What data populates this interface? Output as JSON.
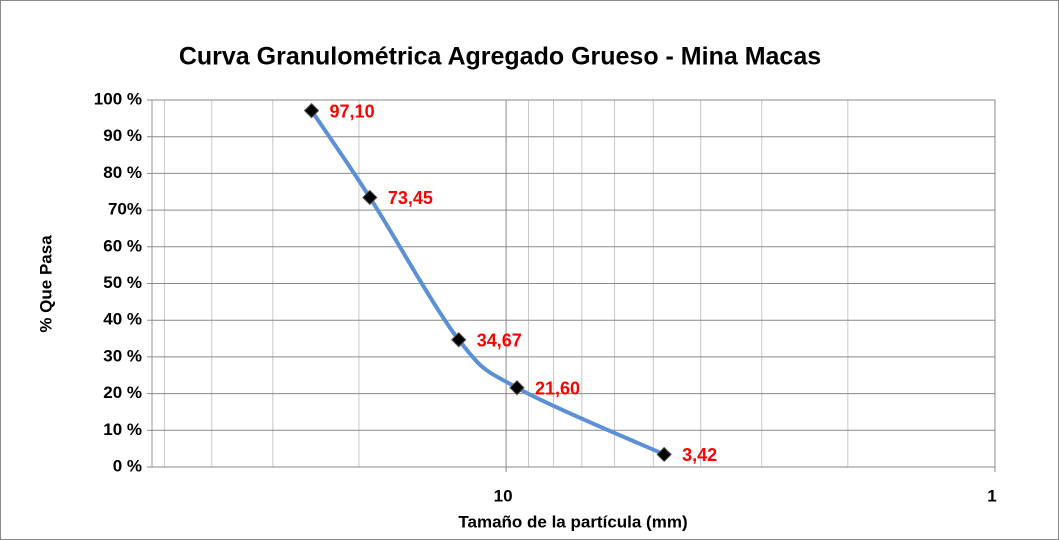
{
  "chart_data": {
    "type": "line",
    "title": "Curva Granulométrica Agregado Grueso - Mina Macas",
    "x_label": "Tamaño de la partícula (mm)",
    "y_label": "% Que Pasa",
    "x": [
      25,
      19,
      12.5,
      9.5,
      4.75
    ],
    "series": [
      {
        "name": "% Que Pasa",
        "color": "#5b8fd6",
        "marker_color": "#000000",
        "values": [
          97.1,
          73.45,
          34.67,
          21.6,
          3.42
        ],
        "value_labels": [
          "97,10",
          "73,45",
          "34,67",
          "21,60",
          "3,42"
        ],
        "label_color": "#ff0000"
      }
    ],
    "x_log": true,
    "xlim": [
      53,
      1
    ],
    "xticks": [
      10,
      1
    ],
    "x_minor_grid": true,
    "ylim": [
      0,
      100
    ],
    "yticks": [
      {
        "value": 0,
        "label": "0 %"
      },
      {
        "value": 10,
        "label": "10 %"
      },
      {
        "value": 20,
        "label": "20 %"
      },
      {
        "value": 30,
        "label": "30 %"
      },
      {
        "value": 40,
        "label": "40 %"
      },
      {
        "value": 50,
        "label": "50 %"
      },
      {
        "value": 60,
        "label": "60 %"
      },
      {
        "value": 70,
        "label": "70%"
      },
      {
        "value": 80,
        "label": "80 %"
      },
      {
        "value": 90,
        "label": "90 %"
      },
      {
        "value": 100,
        "label": "100 %"
      }
    ],
    "grid": true
  }
}
